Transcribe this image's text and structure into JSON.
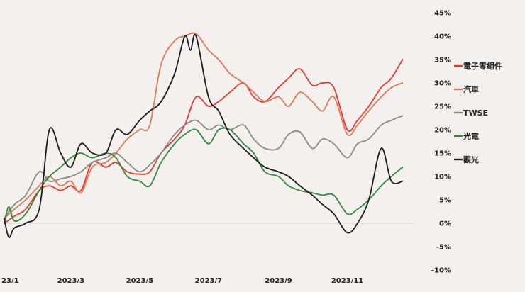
{
  "chart_data": {
    "type": "line",
    "title": "",
    "xlabel": "",
    "ylabel": "",
    "x_tick_labels": [
      "23/1",
      "2023/3",
      "2023/5",
      "2023/7",
      "2023/9",
      "2023/11"
    ],
    "x_tick_dates": [
      "2023-01-01",
      "2023-03-01",
      "2023-05-01",
      "2023-07-01",
      "2023-09-01",
      "2023-11-01"
    ],
    "xlim": [
      "2023-01-01",
      "2023-12-31"
    ],
    "ylim": [
      -10,
      45
    ],
    "y_ticks": [
      -10,
      -5,
      0,
      5,
      10,
      15,
      20,
      25,
      30,
      35,
      40,
      45
    ],
    "y_tick_labels": [
      "-10%",
      "-5%",
      "0%",
      "5%",
      "10%",
      "15%",
      "20%",
      "25%",
      "30%",
      "35%",
      "40%",
      "45%"
    ],
    "legend_position": "right",
    "grid": false,
    "series": [
      {
        "name": "電子零組件",
        "color": "#e8382e",
        "points": [
          [
            "2023-01-01",
            0
          ],
          [
            "2023-01-10",
            1.5
          ],
          [
            "2023-01-20",
            3
          ],
          [
            "2023-02-01",
            7
          ],
          [
            "2023-02-10",
            8
          ],
          [
            "2023-02-20",
            7
          ],
          [
            "2023-03-01",
            8
          ],
          [
            "2023-03-10",
            7
          ],
          [
            "2023-03-20",
            13
          ],
          [
            "2023-04-01",
            12
          ],
          [
            "2023-04-10",
            13
          ],
          [
            "2023-04-20",
            11
          ],
          [
            "2023-05-01",
            10.5
          ],
          [
            "2023-05-10",
            11
          ],
          [
            "2023-05-20",
            15
          ],
          [
            "2023-06-01",
            18
          ],
          [
            "2023-06-10",
            21
          ],
          [
            "2023-06-20",
            27
          ],
          [
            "2023-07-01",
            25
          ],
          [
            "2023-07-10",
            26
          ],
          [
            "2023-07-20",
            28
          ],
          [
            "2023-08-01",
            30
          ],
          [
            "2023-08-10",
            27
          ],
          [
            "2023-08-20",
            26
          ],
          [
            "2023-09-01",
            29
          ],
          [
            "2023-09-10",
            31
          ],
          [
            "2023-09-20",
            33
          ],
          [
            "2023-10-01",
            29.5
          ],
          [
            "2023-10-10",
            30
          ],
          [
            "2023-10-20",
            29
          ],
          [
            "2023-11-01",
            20
          ],
          [
            "2023-11-10",
            22
          ],
          [
            "2023-11-20",
            25
          ],
          [
            "2023-12-01",
            29
          ],
          [
            "2023-12-10",
            31
          ],
          [
            "2023-12-20",
            35
          ]
        ]
      },
      {
        "name": "汽車",
        "color": "#e07a55",
        "points": [
          [
            "2023-01-01",
            1
          ],
          [
            "2023-01-10",
            3
          ],
          [
            "2023-01-20",
            5
          ],
          [
            "2023-02-01",
            8
          ],
          [
            "2023-02-10",
            10
          ],
          [
            "2023-02-20",
            8
          ],
          [
            "2023-03-01",
            9
          ],
          [
            "2023-03-10",
            6.5
          ],
          [
            "2023-03-20",
            12
          ],
          [
            "2023-04-01",
            13
          ],
          [
            "2023-04-10",
            15
          ],
          [
            "2023-04-20",
            18
          ],
          [
            "2023-05-01",
            20
          ],
          [
            "2023-05-10",
            21
          ],
          [
            "2023-05-20",
            34
          ],
          [
            "2023-06-01",
            39
          ],
          [
            "2023-06-10",
            40
          ],
          [
            "2023-06-20",
            40.5
          ],
          [
            "2023-07-01",
            37
          ],
          [
            "2023-07-10",
            35
          ],
          [
            "2023-07-20",
            32
          ],
          [
            "2023-08-01",
            30
          ],
          [
            "2023-08-10",
            28
          ],
          [
            "2023-08-20",
            26
          ],
          [
            "2023-09-01",
            27
          ],
          [
            "2023-09-10",
            25
          ],
          [
            "2023-09-20",
            28
          ],
          [
            "2023-10-01",
            26
          ],
          [
            "2023-10-10",
            24
          ],
          [
            "2023-10-20",
            27
          ],
          [
            "2023-11-01",
            19
          ],
          [
            "2023-11-10",
            21
          ],
          [
            "2023-11-20",
            24
          ],
          [
            "2023-12-01",
            27
          ],
          [
            "2023-12-10",
            29
          ],
          [
            "2023-12-20",
            30
          ]
        ]
      },
      {
        "name": "TWSE",
        "color": "#8a8a8a",
        "points": [
          [
            "2023-01-01",
            1
          ],
          [
            "2023-01-10",
            4
          ],
          [
            "2023-01-20",
            6
          ],
          [
            "2023-02-01",
            11
          ],
          [
            "2023-02-10",
            9
          ],
          [
            "2023-02-20",
            9.5
          ],
          [
            "2023-03-01",
            10
          ],
          [
            "2023-03-10",
            11
          ],
          [
            "2023-03-20",
            13
          ],
          [
            "2023-04-01",
            14
          ],
          [
            "2023-04-10",
            15
          ],
          [
            "2023-04-20",
            13
          ],
          [
            "2023-05-01",
            11
          ],
          [
            "2023-05-10",
            12.5
          ],
          [
            "2023-05-20",
            15
          ],
          [
            "2023-06-01",
            19
          ],
          [
            "2023-06-10",
            21
          ],
          [
            "2023-06-20",
            22
          ],
          [
            "2023-07-01",
            20
          ],
          [
            "2023-07-10",
            21
          ],
          [
            "2023-07-20",
            20
          ],
          [
            "2023-08-01",
            21
          ],
          [
            "2023-08-10",
            18
          ],
          [
            "2023-08-20",
            16
          ],
          [
            "2023-09-01",
            16
          ],
          [
            "2023-09-10",
            19
          ],
          [
            "2023-09-20",
            19.5
          ],
          [
            "2023-10-01",
            16
          ],
          [
            "2023-10-10",
            18
          ],
          [
            "2023-10-20",
            17
          ],
          [
            "2023-11-01",
            14
          ],
          [
            "2023-11-10",
            17
          ],
          [
            "2023-11-20",
            18
          ],
          [
            "2023-12-01",
            21
          ],
          [
            "2023-12-10",
            22
          ],
          [
            "2023-12-20",
            23
          ]
        ]
      },
      {
        "name": "光電",
        "color": "#2e8b3a",
        "points": [
          [
            "2023-01-01",
            0
          ],
          [
            "2023-01-05",
            3.5
          ],
          [
            "2023-01-10",
            0.5
          ],
          [
            "2023-01-20",
            2
          ],
          [
            "2023-02-01",
            7
          ],
          [
            "2023-02-10",
            10
          ],
          [
            "2023-02-20",
            12
          ],
          [
            "2023-03-01",
            14
          ],
          [
            "2023-03-10",
            15
          ],
          [
            "2023-03-20",
            14
          ],
          [
            "2023-04-01",
            15
          ],
          [
            "2023-04-10",
            14
          ],
          [
            "2023-04-20",
            10
          ],
          [
            "2023-05-01",
            9
          ],
          [
            "2023-05-10",
            8
          ],
          [
            "2023-05-20",
            13
          ],
          [
            "2023-06-01",
            17
          ],
          [
            "2023-06-10",
            19
          ],
          [
            "2023-06-20",
            20
          ],
          [
            "2023-07-01",
            17
          ],
          [
            "2023-07-10",
            20
          ],
          [
            "2023-07-20",
            20
          ],
          [
            "2023-08-01",
            17
          ],
          [
            "2023-08-10",
            15
          ],
          [
            "2023-08-20",
            11
          ],
          [
            "2023-09-01",
            10
          ],
          [
            "2023-09-10",
            8
          ],
          [
            "2023-09-20",
            7
          ],
          [
            "2023-10-01",
            6.5
          ],
          [
            "2023-10-10",
            6
          ],
          [
            "2023-10-20",
            6
          ],
          [
            "2023-11-01",
            2
          ],
          [
            "2023-11-10",
            3
          ],
          [
            "2023-11-20",
            5
          ],
          [
            "2023-12-01",
            8
          ],
          [
            "2023-12-10",
            10
          ],
          [
            "2023-12-20",
            12
          ]
        ]
      },
      {
        "name": "觀光",
        "color": "#1c1c1c",
        "points": [
          [
            "2023-01-01",
            1
          ],
          [
            "2023-01-05",
            -3
          ],
          [
            "2023-01-10",
            -1
          ],
          [
            "2023-01-20",
            0
          ],
          [
            "2023-02-01",
            3
          ],
          [
            "2023-02-10",
            20
          ],
          [
            "2023-02-20",
            15
          ],
          [
            "2023-03-01",
            12
          ],
          [
            "2023-03-10",
            17
          ],
          [
            "2023-03-20",
            15
          ],
          [
            "2023-04-01",
            15
          ],
          [
            "2023-04-10",
            20
          ],
          [
            "2023-04-20",
            19
          ],
          [
            "2023-05-01",
            22
          ],
          [
            "2023-05-10",
            24
          ],
          [
            "2023-05-20",
            26
          ],
          [
            "2023-06-01",
            32
          ],
          [
            "2023-06-10",
            40
          ],
          [
            "2023-06-15",
            37
          ],
          [
            "2023-06-20",
            40
          ],
          [
            "2023-07-01",
            27
          ],
          [
            "2023-07-10",
            24
          ],
          [
            "2023-07-20",
            19
          ],
          [
            "2023-08-01",
            16
          ],
          [
            "2023-08-10",
            14
          ],
          [
            "2023-08-20",
            12
          ],
          [
            "2023-09-01",
            11
          ],
          [
            "2023-09-10",
            10
          ],
          [
            "2023-09-20",
            8
          ],
          [
            "2023-10-01",
            6
          ],
          [
            "2023-10-10",
            4
          ],
          [
            "2023-10-20",
            2
          ],
          [
            "2023-11-01",
            -2
          ],
          [
            "2023-11-10",
            0
          ],
          [
            "2023-11-20",
            5
          ],
          [
            "2023-12-01",
            16
          ],
          [
            "2023-12-10",
            9
          ],
          [
            "2023-12-20",
            9
          ]
        ]
      }
    ]
  }
}
